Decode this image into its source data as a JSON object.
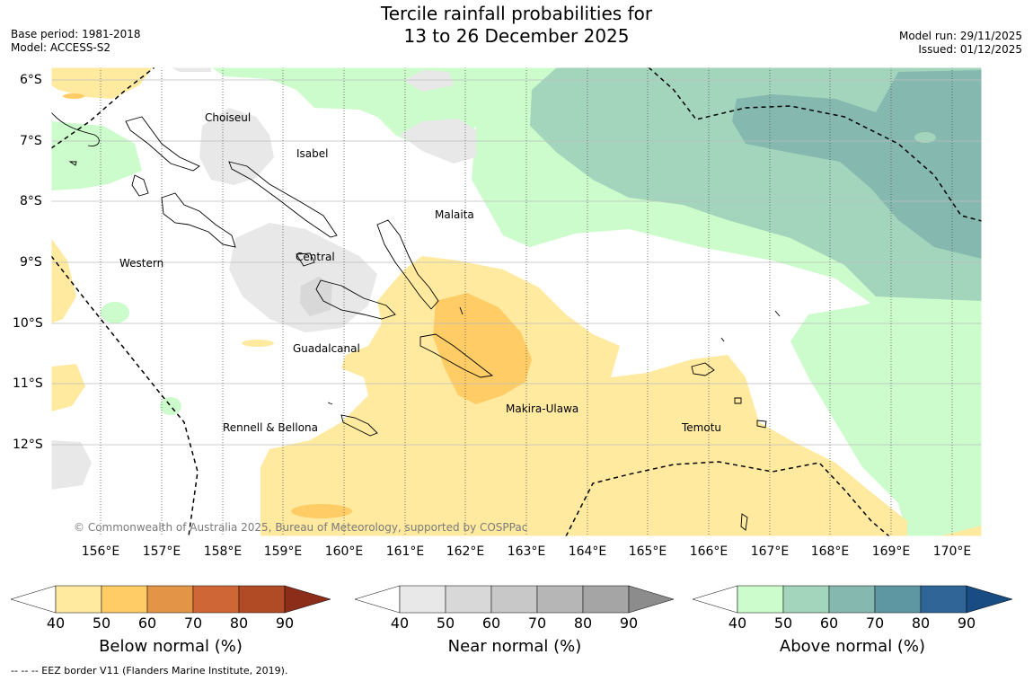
{
  "header": {
    "title_line1": "Tercile rainfall probabilities for",
    "title_line2": "13 to 26 December 2025",
    "base_period": "Base period: 1981-2018",
    "model": "Model: ACCESS-S2",
    "model_run": "Model run: 29/11/2025",
    "issued": "Issued: 01/12/2025"
  },
  "map": {
    "lat_labels": [
      "6°S",
      "7°S",
      "8°S",
      "9°S",
      "10°S",
      "11°S",
      "12°S"
    ],
    "lon_labels": [
      "156°E",
      "157°E",
      "158°E",
      "159°E",
      "160°E",
      "161°E",
      "162°E",
      "163°E",
      "164°E",
      "165°E",
      "166°E",
      "167°E",
      "168°E",
      "169°E",
      "170°E"
    ],
    "regions": {
      "choiseul": "Choiseul",
      "isabel": "Isabel",
      "malaita": "Malaita",
      "western": "Western",
      "central": "Central",
      "guadalcanal": "Guadalcanal",
      "makira": "Makira-Ulawa",
      "rennell": "Rennell & Bellona",
      "temotu": "Temotu"
    },
    "copyright": "© Commonwealth of Australia 2025, Bureau of Meteorology, supported by COSPPac"
  },
  "colorbars": {
    "ticks": [
      "40",
      "50",
      "60",
      "70",
      "80",
      "90"
    ],
    "below": {
      "title": "Below normal (%)",
      "colors": [
        "#ffffff",
        "#ffeaa0",
        "#ffcc66",
        "#e39446",
        "#cf6636",
        "#b14b26",
        "#8c2d1a"
      ]
    },
    "near": {
      "title": "Near normal (%)",
      "colors": [
        "#ffffff",
        "#e8e8e8",
        "#d8d8d8",
        "#c8c8c8",
        "#b6b6b6",
        "#a5a5a5",
        "#8c8c8c"
      ]
    },
    "above": {
      "title": "Above normal (%)",
      "colors": [
        "#ffffff",
        "#ccfccc",
        "#a2d5bb",
        "#85b9b0",
        "#5e96a2",
        "#2f6697",
        "#184c82"
      ]
    }
  },
  "footer": {
    "eez_note": "--  --  -- EEZ border V11 (Flanders Marine Institute, 2019)."
  }
}
